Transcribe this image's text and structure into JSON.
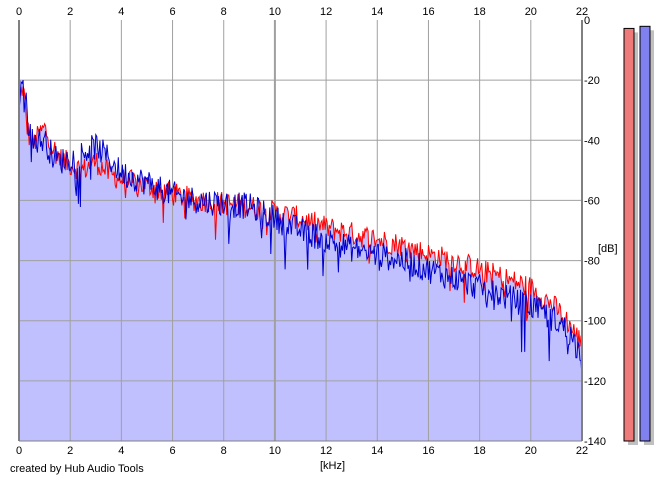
{
  "credit": "created by Hub Audio Tools",
  "chart_data": {
    "type": "area",
    "xlabel": "[kHz]",
    "ylabel": "[dB]",
    "xlim": [
      0,
      22
    ],
    "ylim": [
      -140,
      0
    ],
    "x_ticks": [
      "0",
      "2",
      "4",
      "6",
      "8",
      "10",
      "12",
      "14",
      "16",
      "18",
      "20",
      "22"
    ],
    "y_ticks": [
      "0",
      "-20",
      "-40",
      "-60",
      "-80",
      "-100",
      "-120",
      "-140"
    ],
    "grid": true,
    "colors": {
      "fill": "#c0c0ff",
      "left_channel": "#ff0000",
      "right_channel": "#0000cc",
      "grid": "#a0a0a0",
      "left_meter": "#ef7a7a",
      "right_meter": "#8080ef"
    },
    "series": [
      {
        "color": "#ff0000",
        "x": [
          0,
          0.1,
          0.2,
          0.3,
          0.5,
          0.8,
          1.0,
          1.3,
          1.6,
          2.0,
          2.5,
          3.0,
          3.5,
          4.0,
          5.0,
          6.0,
          7.0,
          8.0,
          9.0,
          10.0,
          11.0,
          12.0,
          13.0,
          14.0,
          15.0,
          16.0,
          17.0,
          18.0,
          19.0,
          20.0,
          21.0,
          21.5,
          22.0
        ],
        "values": [
          -30,
          -22,
          -25,
          -35,
          -42,
          -38,
          -36,
          -42,
          -46,
          -48,
          -50,
          -47,
          -51,
          -53,
          -55,
          -58,
          -60,
          -61,
          -62,
          -64,
          -66,
          -69,
          -71,
          -73,
          -75,
          -78,
          -80,
          -83,
          -86,
          -89,
          -96,
          -101,
          -108
        ]
      },
      {
        "color": "#0000cc",
        "x": [
          0,
          0.1,
          0.2,
          0.3,
          0.5,
          0.8,
          1.0,
          1.3,
          1.6,
          2.0,
          2.5,
          3.0,
          3.5,
          4.0,
          5.0,
          6.0,
          7.0,
          8.0,
          9.0,
          10.0,
          11.0,
          12.0,
          13.0,
          14.0,
          15.0,
          16.0,
          17.0,
          18.0,
          19.0,
          20.0,
          21.0,
          21.5,
          22.0
        ],
        "values": [
          -28,
          -19,
          -21,
          -30,
          -40,
          -40,
          -40,
          -45,
          -47,
          -46,
          -44,
          -42,
          -46,
          -51,
          -54,
          -58,
          -60,
          -61,
          -62,
          -66,
          -70,
          -73,
          -76,
          -78,
          -80,
          -83,
          -86,
          -89,
          -92,
          -95,
          -100,
          -104,
          -112
        ]
      }
    ],
    "meters": [
      {
        "color": "#ef7a7a",
        "level": 0.98
      },
      {
        "color": "#8080ef",
        "level": 0.985
      }
    ]
  }
}
